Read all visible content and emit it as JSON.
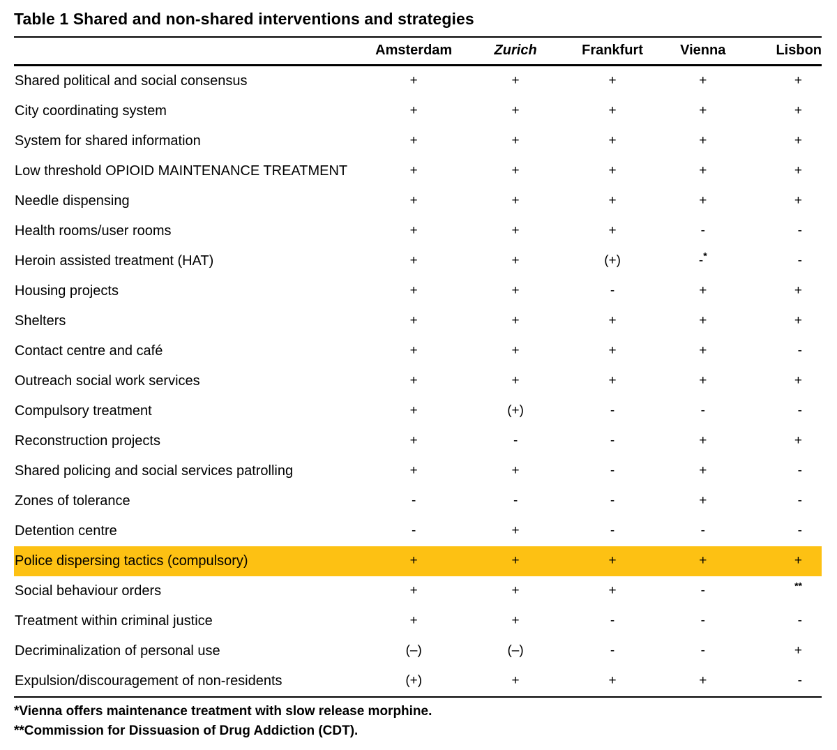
{
  "page": {
    "title": "Table 1 Shared and non-shared interventions and strategies"
  },
  "table": {
    "highlight_color": "#FDC113",
    "text_color": "#000000",
    "columns": [
      {
        "label": "Amsterdam",
        "italic": false
      },
      {
        "label": "Zurich",
        "italic": true
      },
      {
        "label": "Frankfurt",
        "italic": false
      },
      {
        "label": "Vienna",
        "italic": false
      },
      {
        "label": "Lisbon",
        "italic": false
      }
    ],
    "rows": [
      {
        "label": "Shared political and social consensus",
        "values": [
          "+",
          "+",
          "+",
          "+",
          "+"
        ],
        "highlight": false
      },
      {
        "label": "City coordinating system",
        "values": [
          "+",
          "+",
          "+",
          "+",
          "+"
        ],
        "highlight": false
      },
      {
        "label": "System for shared information",
        "values": [
          "+",
          "+",
          "+",
          "+",
          "+"
        ],
        "highlight": false
      },
      {
        "label": "Low threshold OPIOID MAINTENANCE TREATMENT",
        "values": [
          "+",
          "+",
          "+",
          "+",
          "+"
        ],
        "highlight": false
      },
      {
        "label": "Needle dispensing",
        "values": [
          "+",
          "+",
          "+",
          "+",
          "+"
        ],
        "highlight": false
      },
      {
        "label": "Health rooms/user rooms",
        "values": [
          "+",
          "+",
          "+",
          "-",
          "-"
        ],
        "highlight": false
      },
      {
        "label": "Heroin assisted treatment (HAT)",
        "values": [
          "+",
          "+",
          "(+)",
          "-*",
          "-"
        ],
        "highlight": false
      },
      {
        "label": "Housing projects",
        "values": [
          "+",
          "+",
          "-",
          "+",
          "+"
        ],
        "highlight": false
      },
      {
        "label": "Shelters",
        "values": [
          "+",
          "+",
          "+",
          "+",
          "+"
        ],
        "highlight": false
      },
      {
        "label": "Contact centre and café",
        "values": [
          "+",
          "+",
          "+",
          "+",
          "-"
        ],
        "highlight": false
      },
      {
        "label": "Outreach social work services",
        "values": [
          "+",
          "+",
          "+",
          "+",
          "+"
        ],
        "highlight": false
      },
      {
        "label": "Compulsory treatment",
        "values": [
          "+",
          "(+)",
          "-",
          "-",
          "-"
        ],
        "highlight": false
      },
      {
        "label": "Reconstruction projects",
        "values": [
          "+",
          "-",
          "-",
          "+",
          "+"
        ],
        "highlight": false
      },
      {
        "label": "Shared policing and social services patrolling",
        "values": [
          "+",
          "+",
          "-",
          "+",
          "-"
        ],
        "highlight": false
      },
      {
        "label": "Zones of tolerance",
        "values": [
          "-",
          "-",
          "-",
          "+",
          "-"
        ],
        "highlight": false
      },
      {
        "label": "Detention centre",
        "values": [
          "-",
          "+",
          "-",
          "-",
          "-"
        ],
        "highlight": false
      },
      {
        "label": "Police dispersing tactics (compulsory)",
        "values": [
          "+",
          "+",
          "+",
          "+",
          "+"
        ],
        "highlight": true
      },
      {
        "label": "Social behaviour orders",
        "values": [
          "+",
          "+",
          "+",
          "-",
          "**"
        ],
        "highlight": false
      },
      {
        "label": "Treatment within criminal justice",
        "values": [
          "+",
          "+",
          "-",
          "-",
          "-"
        ],
        "highlight": false
      },
      {
        "label": "Decriminalization of personal use",
        "values": [
          "(–)",
          "(–)",
          "-",
          "-",
          "+"
        ],
        "highlight": false
      },
      {
        "label": "Expulsion/discouragement of non-residents",
        "values": [
          "(+)",
          "+",
          "+",
          "+",
          "-"
        ],
        "highlight": false
      }
    ],
    "footnotes": [
      "*Vienna offers maintenance treatment with slow release morphine.",
      "**Commission for Dissuasion of Drug Addiction (CDT)."
    ]
  }
}
